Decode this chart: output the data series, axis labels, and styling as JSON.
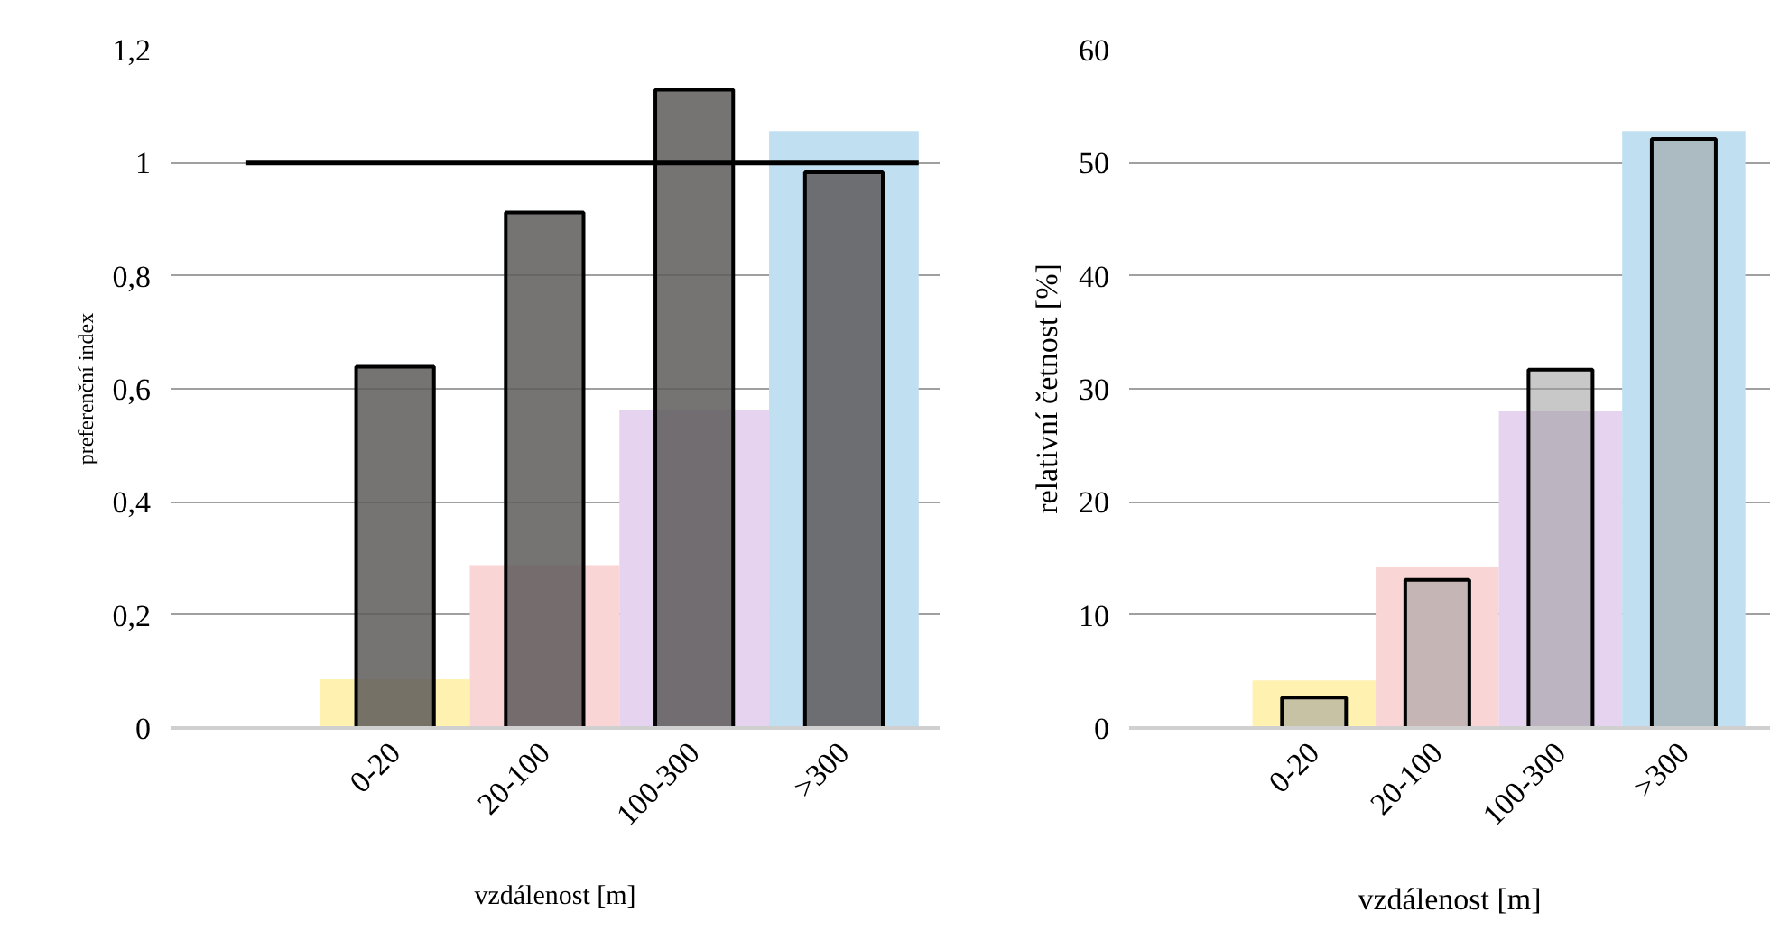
{
  "chart_data": [
    {
      "type": "bar",
      "ylabel": "preferenční index",
      "xlabel": "vzdálenost [m]",
      "categories": [
        null,
        "0-20",
        "20-100",
        "100-300",
        ">300"
      ],
      "series": [
        {
          "colors": [
            "#fff2b0",
            "#fff2b0",
            "#f9d5d5",
            "#e5d3ef",
            "#c0dff0"
          ],
          "values": [
            null,
            0.086,
            0.288,
            0.562,
            1.056
          ]
        },
        {
          "color": "#5e5a5a",
          "values": [
            null,
            0.639,
            0.912,
            1.129,
            0.983
          ]
        }
      ],
      "ylim": [
        0,
        1.2
      ],
      "yticks": [
        0,
        {
          "value": 0.2,
          "label": "0,2"
        },
        {
          "value": 0.4,
          "label": "0,4"
        },
        {
          "value": 0.6,
          "label": "0,6"
        },
        {
          "value": 0.8,
          "label": "0,8"
        },
        1,
        {
          "value": 1.2,
          "label": "1,2"
        }
      ],
      "ref_lines": [
        {
          "axis": "y",
          "value": 1,
          "color": "#000000"
        }
      ],
      "grid": "y"
    },
    {
      "type": "bar",
      "ylabel": "relativní četnost [%]",
      "xlabel": "vzdálenost [m]",
      "categories": [
        null,
        "0-20",
        "20-100",
        "100-300",
        ">300"
      ],
      "series": [
        {
          "colors": [
            "#fff2b0",
            "#fff2b0",
            "#f9d5d5",
            "#e5d3ef",
            "#c0dff0"
          ],
          "values": [
            null,
            4.2,
            14.2,
            28.0,
            52.8
          ]
        },
        {
          "color": "#9a9a9a",
          "values": [
            null,
            2.7,
            13.1,
            31.7,
            52.1
          ]
        }
      ],
      "ylim": [
        0,
        60
      ],
      "yticks": [
        0,
        10,
        20,
        30,
        40,
        50,
        60
      ],
      "grid": "y"
    }
  ]
}
